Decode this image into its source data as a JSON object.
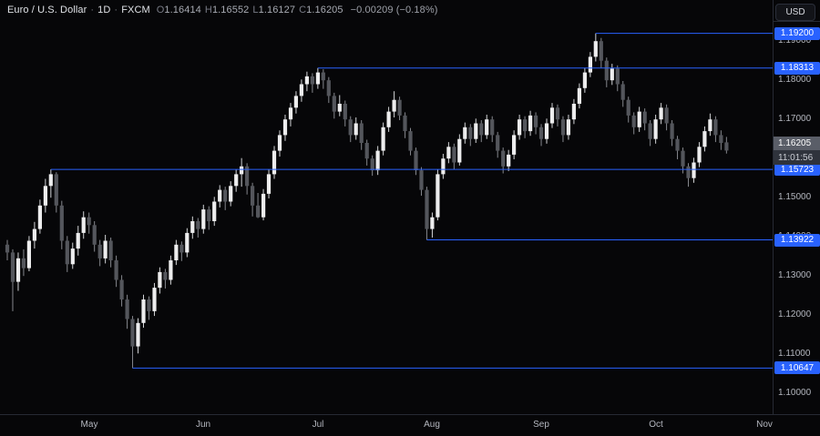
{
  "header": {
    "symbol": "Euro / U.S. Dollar",
    "separator": "·",
    "interval": "1D",
    "exchange": "FXCM",
    "ohlc": [
      {
        "label": "O",
        "value": "1.16414"
      },
      {
        "label": "H",
        "value": "1.16552"
      },
      {
        "label": "L",
        "value": "1.16127"
      },
      {
        "label": "C",
        "value": "1.16205"
      }
    ],
    "change": "−0.00209 (−0.18%)",
    "currency_button": "USD"
  },
  "colors": {
    "background": "#060608",
    "candle_up": "#ededee",
    "candle_down": "#54565c",
    "wick_up": "#d2d3d6",
    "wick_down": "#85878d",
    "level_line": "#2962ff",
    "level_label_bg": "#2962ff",
    "axis_text": "#b4b7bf",
    "current_price_bg": "#5a5e68",
    "countdown_bg": "#2f333c"
  },
  "axis": {
    "price_ticks": [
      1.19,
      1.18,
      1.17,
      1.16,
      1.15,
      1.14,
      1.13,
      1.12,
      1.11,
      1.1
    ],
    "time_ticks": [
      {
        "label": "May",
        "index": 15
      },
      {
        "label": "Jun",
        "index": 36
      },
      {
        "label": "Jul",
        "index": 57
      },
      {
        "label": "Aug",
        "index": 78
      },
      {
        "label": "Sep",
        "index": 98
      },
      {
        "label": "Oct",
        "index": 119
      },
      {
        "label": "Nov",
        "index": 139
      }
    ],
    "current_price": {
      "value": 1.16205,
      "label": "1.16205",
      "countdown": "11:01:56"
    }
  },
  "chart_data": {
    "type": "candlestick",
    "title": "Euro / U.S. Dollar",
    "symbol": "EUR/USD",
    "exchange": "FXCM",
    "timeframe": "1D",
    "ylim": [
      1.0947,
      1.2005
    ],
    "grid": false,
    "levels": [
      {
        "price": 1.192,
        "label": "1.19200",
        "start_index": 108
      },
      {
        "price": 1.18313,
        "label": "1.18313",
        "start_index": 57
      },
      {
        "price": 1.15723,
        "label": "1.15723",
        "start_index": 8
      },
      {
        "price": 1.13922,
        "label": "1.13922",
        "start_index": 77
      },
      {
        "price": 1.10647,
        "label": "1.10647",
        "start_index": 23
      }
    ],
    "candles": [
      [
        1.138,
        1.1392,
        1.134,
        1.136
      ],
      [
        1.136,
        1.1368,
        1.121,
        1.1285
      ],
      [
        1.1285,
        1.136,
        1.1262,
        1.1345
      ],
      [
        1.1345,
        1.1368,
        1.13,
        1.132
      ],
      [
        1.132,
        1.1402,
        1.1312,
        1.139
      ],
      [
        1.139,
        1.1438,
        1.137,
        1.142
      ],
      [
        1.142,
        1.1495,
        1.1408,
        1.148
      ],
      [
        1.148,
        1.1548,
        1.1462,
        1.153
      ],
      [
        1.153,
        1.15723,
        1.15,
        1.156
      ],
      [
        1.156,
        1.1565,
        1.1462,
        1.148
      ],
      [
        1.148,
        1.1492,
        1.1368,
        1.139
      ],
      [
        1.139,
        1.1402,
        1.131,
        1.133
      ],
      [
        1.133,
        1.1385,
        1.1318,
        1.137
      ],
      [
        1.137,
        1.1428,
        1.1352,
        1.141
      ],
      [
        1.141,
        1.1465,
        1.1395,
        1.145
      ],
      [
        1.145,
        1.1462,
        1.1408,
        1.143
      ],
      [
        1.143,
        1.144,
        1.1362,
        1.138
      ],
      [
        1.138,
        1.1392,
        1.1325,
        1.1345
      ],
      [
        1.1345,
        1.1405,
        1.1332,
        1.139
      ],
      [
        1.139,
        1.1398,
        1.1322,
        1.134
      ],
      [
        1.134,
        1.1352,
        1.1272,
        1.129
      ],
      [
        1.129,
        1.1302,
        1.1222,
        1.124
      ],
      [
        1.124,
        1.1252,
        1.1165,
        1.119
      ],
      [
        1.119,
        1.1198,
        1.10647,
        1.112
      ],
      [
        1.112,
        1.1192,
        1.1102,
        1.118
      ],
      [
        1.118,
        1.1252,
        1.1168,
        1.124
      ],
      [
        1.124,
        1.1248,
        1.1188,
        1.121
      ],
      [
        1.121,
        1.1282,
        1.1198,
        1.127
      ],
      [
        1.127,
        1.1322,
        1.1255,
        1.131
      ],
      [
        1.131,
        1.1318,
        1.1268,
        1.129
      ],
      [
        1.129,
        1.1352,
        1.1278,
        1.134
      ],
      [
        1.134,
        1.1392,
        1.1328,
        1.138
      ],
      [
        1.138,
        1.1388,
        1.1338,
        1.136
      ],
      [
        1.136,
        1.1422,
        1.1348,
        1.141
      ],
      [
        1.141,
        1.1452,
        1.1395,
        1.144
      ],
      [
        1.144,
        1.1448,
        1.1398,
        1.142
      ],
      [
        1.142,
        1.1482,
        1.1408,
        1.147
      ],
      [
        1.147,
        1.1478,
        1.1418,
        1.144
      ],
      [
        1.144,
        1.1502,
        1.1428,
        1.149
      ],
      [
        1.149,
        1.1532,
        1.1475,
        1.152
      ],
      [
        1.152,
        1.1528,
        1.1468,
        1.149
      ],
      [
        1.149,
        1.1542,
        1.1478,
        1.153
      ],
      [
        1.153,
        1.1572,
        1.1515,
        1.156
      ],
      [
        1.156,
        1.1601,
        1.1528,
        1.158
      ],
      [
        1.158,
        1.1588,
        1.1508,
        1.153
      ],
      [
        1.153,
        1.1538,
        1.1452,
        1.148
      ],
      [
        1.148,
        1.1512,
        1.1448,
        1.145
      ],
      [
        1.145,
        1.1522,
        1.1442,
        1.151
      ],
      [
        1.151,
        1.1572,
        1.1498,
        1.156
      ],
      [
        1.156,
        1.1632,
        1.1548,
        1.162
      ],
      [
        1.162,
        1.1672,
        1.1605,
        1.166
      ],
      [
        1.166,
        1.1712,
        1.1645,
        1.17
      ],
      [
        1.17,
        1.1742,
        1.1682,
        1.173
      ],
      [
        1.173,
        1.1772,
        1.1715,
        1.176
      ],
      [
        1.176,
        1.1802,
        1.1745,
        1.179
      ],
      [
        1.179,
        1.1822,
        1.1772,
        1.181
      ],
      [
        1.181,
        1.1818,
        1.1768,
        1.179
      ],
      [
        1.179,
        1.18313,
        1.1778,
        1.182
      ],
      [
        1.182,
        1.1828,
        1.1778,
        1.18
      ],
      [
        1.18,
        1.1808,
        1.1742,
        1.176
      ],
      [
        1.176,
        1.1768,
        1.1702,
        1.172
      ],
      [
        1.172,
        1.1762,
        1.1708,
        1.174
      ],
      [
        1.174,
        1.1748,
        1.1682,
        1.17
      ],
      [
        1.17,
        1.1708,
        1.1642,
        1.166
      ],
      [
        1.166,
        1.1705,
        1.1648,
        1.169
      ],
      [
        1.169,
        1.1698,
        1.1622,
        1.164
      ],
      [
        1.164,
        1.1648,
        1.1582,
        1.16
      ],
      [
        1.16,
        1.1608,
        1.1556,
        1.157
      ],
      [
        1.157,
        1.1632,
        1.1558,
        1.162
      ],
      [
        1.162,
        1.1692,
        1.1608,
        1.168
      ],
      [
        1.168,
        1.1732,
        1.1668,
        1.172
      ],
      [
        1.172,
        1.1772,
        1.1705,
        1.175
      ],
      [
        1.175,
        1.1758,
        1.1698,
        1.171
      ],
      [
        1.171,
        1.1718,
        1.1652,
        1.167
      ],
      [
        1.167,
        1.1678,
        1.1608,
        1.162
      ],
      [
        1.162,
        1.1628,
        1.1558,
        1.157
      ],
      [
        1.157,
        1.1578,
        1.1505,
        1.152
      ],
      [
        1.152,
        1.1528,
        1.13922,
        1.142
      ],
      [
        1.142,
        1.1462,
        1.1398,
        1.145
      ],
      [
        1.145,
        1.1572,
        1.1442,
        1.156
      ],
      [
        1.156,
        1.1612,
        1.1548,
        1.16
      ],
      [
        1.16,
        1.1642,
        1.1588,
        1.163
      ],
      [
        1.163,
        1.1638,
        1.1572,
        1.159
      ],
      [
        1.159,
        1.1662,
        1.1582,
        1.165
      ],
      [
        1.165,
        1.1692,
        1.1638,
        1.168
      ],
      [
        1.168,
        1.1688,
        1.1632,
        1.165
      ],
      [
        1.165,
        1.1702,
        1.164,
        1.169
      ],
      [
        1.169,
        1.1698,
        1.1642,
        1.166
      ],
      [
        1.166,
        1.1712,
        1.165,
        1.17
      ],
      [
        1.17,
        1.1708,
        1.1642,
        1.166
      ],
      [
        1.166,
        1.1668,
        1.1602,
        1.162
      ],
      [
        1.162,
        1.1628,
        1.1562,
        1.158
      ],
      [
        1.158,
        1.1622,
        1.1568,
        1.161
      ],
      [
        1.161,
        1.1672,
        1.1598,
        1.166
      ],
      [
        1.166,
        1.1712,
        1.1648,
        1.17
      ],
      [
        1.17,
        1.1708,
        1.1652,
        1.167
      ],
      [
        1.167,
        1.1722,
        1.1658,
        1.171
      ],
      [
        1.171,
        1.1718,
        1.1662,
        1.168
      ],
      [
        1.168,
        1.1688,
        1.1632,
        1.165
      ],
      [
        1.165,
        1.1702,
        1.1638,
        1.169
      ],
      [
        1.169,
        1.1742,
        1.1678,
        1.173
      ],
      [
        1.173,
        1.1738,
        1.1682,
        1.17
      ],
      [
        1.17,
        1.1708,
        1.1642,
        1.166
      ],
      [
        1.166,
        1.1712,
        1.1648,
        1.17
      ],
      [
        1.17,
        1.1752,
        1.1688,
        1.174
      ],
      [
        1.174,
        1.1792,
        1.1728,
        1.178
      ],
      [
        1.178,
        1.1832,
        1.1768,
        1.182
      ],
      [
        1.182,
        1.1872,
        1.1808,
        1.186
      ],
      [
        1.186,
        1.192,
        1.1848,
        1.19
      ],
      [
        1.19,
        1.1908,
        1.1832,
        1.185
      ],
      [
        1.185,
        1.1858,
        1.1782,
        1.18
      ],
      [
        1.18,
        1.1842,
        1.1788,
        1.183
      ],
      [
        1.183,
        1.1838,
        1.1772,
        1.179
      ],
      [
        1.179,
        1.1798,
        1.1732,
        1.175
      ],
      [
        1.175,
        1.1758,
        1.1692,
        1.171
      ],
      [
        1.171,
        1.1718,
        1.1662,
        1.168
      ],
      [
        1.168,
        1.1732,
        1.1668,
        1.172
      ],
      [
        1.172,
        1.1728,
        1.1672,
        1.169
      ],
      [
        1.169,
        1.1698,
        1.1632,
        1.165
      ],
      [
        1.165,
        1.1712,
        1.1638,
        1.17
      ],
      [
        1.17,
        1.1742,
        1.1688,
        1.173
      ],
      [
        1.173,
        1.1738,
        1.1672,
        1.169
      ],
      [
        1.169,
        1.1698,
        1.1632,
        1.165
      ],
      [
        1.165,
        1.1658,
        1.1598,
        1.162
      ],
      [
        1.162,
        1.1628,
        1.1562,
        1.158
      ],
      [
        1.158,
        1.1588,
        1.1528,
        1.155
      ],
      [
        1.155,
        1.1602,
        1.1538,
        1.159
      ],
      [
        1.159,
        1.1642,
        1.1578,
        1.163
      ],
      [
        1.163,
        1.1682,
        1.1618,
        1.167
      ],
      [
        1.167,
        1.1715,
        1.1658,
        1.17
      ],
      [
        1.17,
        1.1708,
        1.1642,
        1.166
      ],
      [
        1.166,
        1.1672,
        1.1622,
        1.164
      ],
      [
        1.16414,
        1.16552,
        1.16127,
        1.16205
      ]
    ]
  }
}
